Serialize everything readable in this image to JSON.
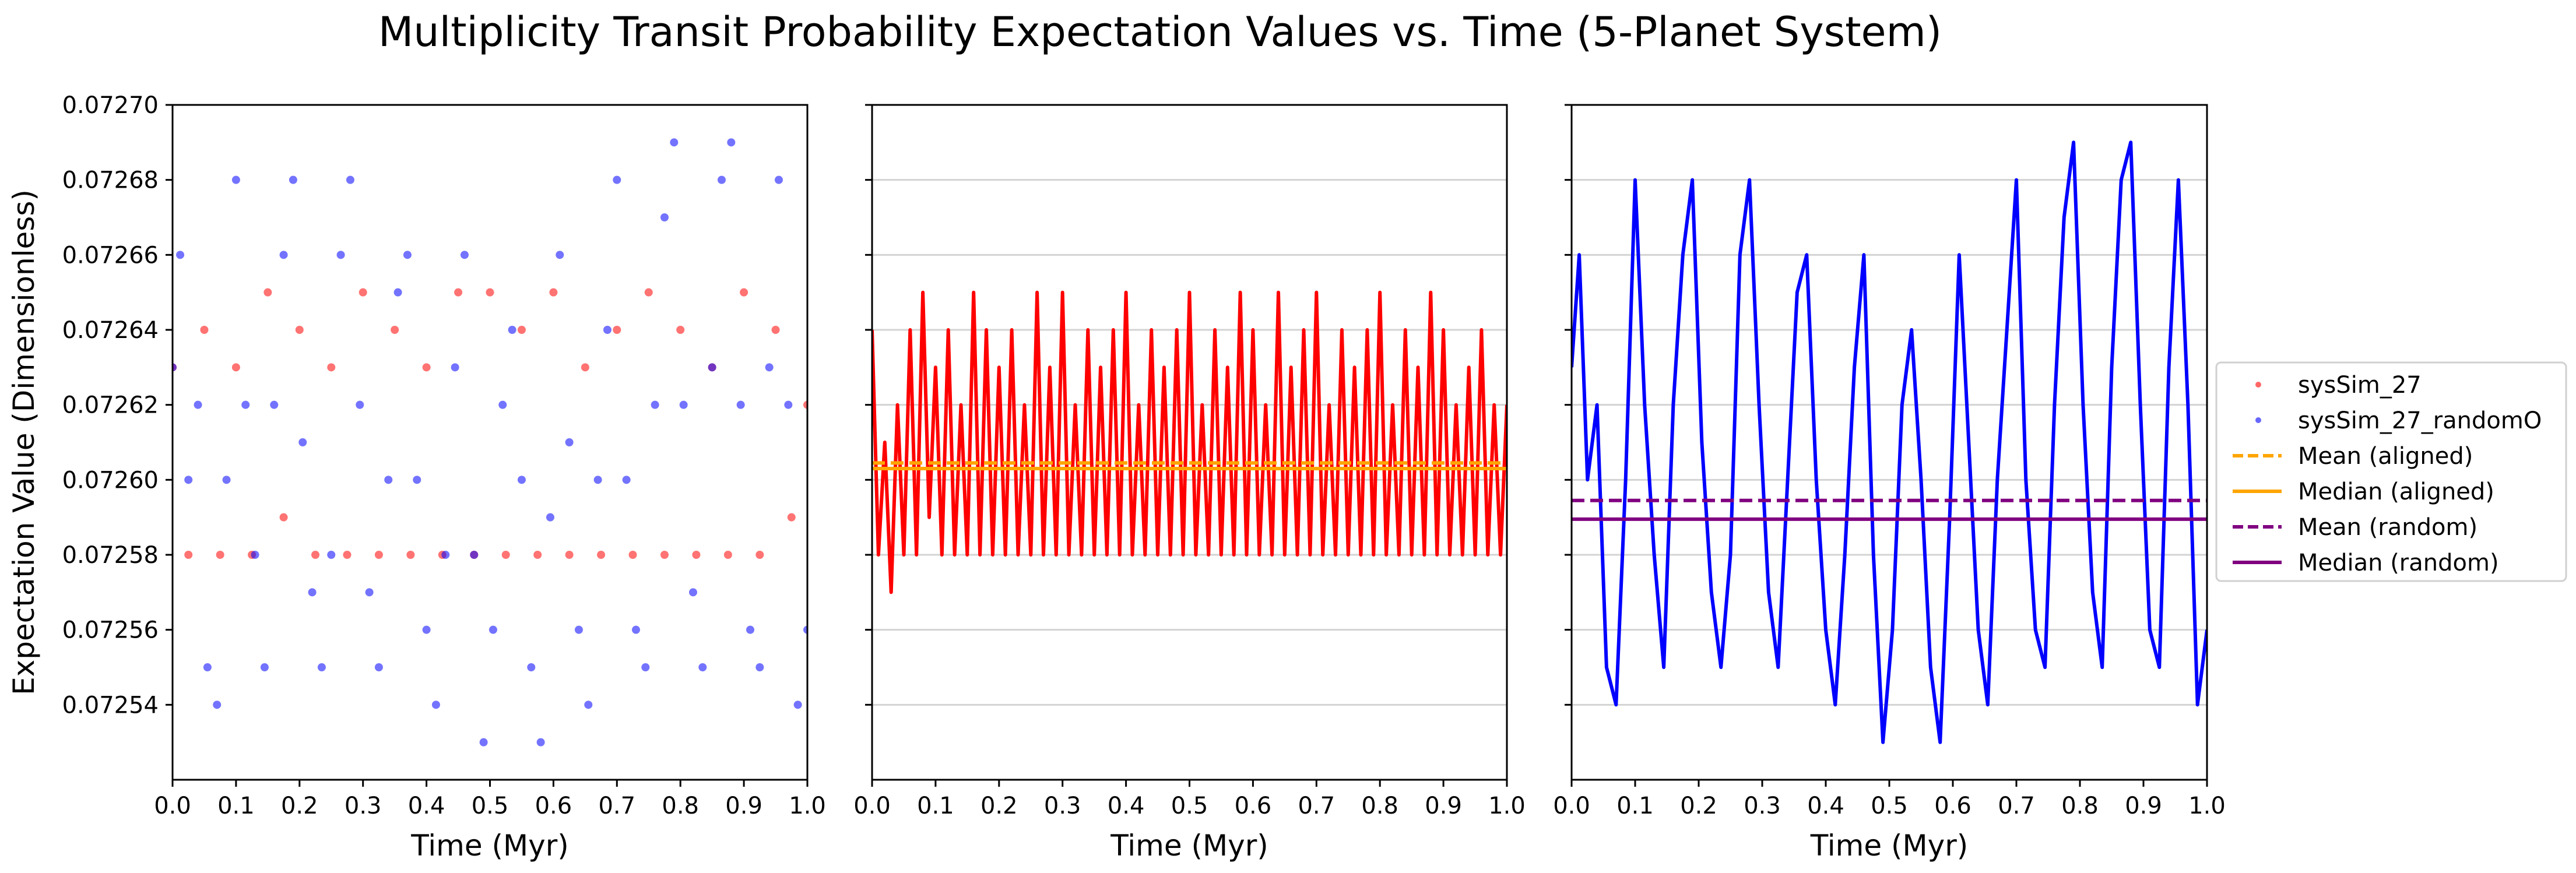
{
  "title": "Multiplicity Transit Probability Expectation Values vs. Time (5-Planet System)",
  "colors": {
    "aligned": "#ff0000",
    "random": "#0000ff",
    "mean_aligned": "#ffa500",
    "median_aligned": "#ffa500",
    "mean_random": "#800080",
    "median_random": "#800080",
    "grid": "#d3d3d3"
  },
  "chart_data": [
    {
      "type": "scatter",
      "panel": 1,
      "xlabel": "Time (Myr)",
      "ylabel": "Expectation Value (Dimensionless)",
      "xlim": [
        0.0,
        1.0
      ],
      "ylim": [
        0.07252,
        0.0727
      ],
      "x_ticks": [
        "0.0",
        "0.1",
        "0.2",
        "0.3",
        "0.4",
        "0.5",
        "0.6",
        "0.7",
        "0.8",
        "0.9",
        "1.0"
      ],
      "y_ticks": [
        "0.07254",
        "0.07256",
        "0.07258",
        "0.07260",
        "0.07262",
        "0.07264",
        "0.07266",
        "0.07268",
        "0.07270"
      ],
      "grid": "horizontal",
      "series": [
        {
          "name": "sysSim_27",
          "style": "scatter",
          "x": [
            0.0,
            0.025,
            0.05,
            0.075,
            0.1,
            0.125,
            0.15,
            0.175,
            0.2,
            0.225,
            0.25,
            0.275,
            0.3,
            0.325,
            0.35,
            0.375,
            0.4,
            0.425,
            0.45,
            0.475,
            0.5,
            0.525,
            0.55,
            0.575,
            0.6,
            0.625,
            0.65,
            0.675,
            0.7,
            0.725,
            0.75,
            0.775,
            0.8,
            0.825,
            0.85,
            0.875,
            0.9,
            0.925,
            0.95,
            0.975,
            1.0
          ],
          "values": [
            0.07263,
            0.07258,
            0.07264,
            0.07258,
            0.07263,
            0.07258,
            0.07265,
            0.07259,
            0.07264,
            0.07258,
            0.07263,
            0.07258,
            0.07265,
            0.07258,
            0.07264,
            0.07258,
            0.07263,
            0.07258,
            0.07265,
            0.07258,
            0.07265,
            0.07258,
            0.07264,
            0.07258,
            0.07265,
            0.07258,
            0.07263,
            0.07258,
            0.07264,
            0.07258,
            0.07265,
            0.07258,
            0.07264,
            0.07258,
            0.07263,
            0.07258,
            0.07265,
            0.07258,
            0.07264,
            0.07259,
            0.07262
          ]
        },
        {
          "name": "sysSim_27_randomO",
          "style": "scatter",
          "x": [
            0.0,
            0.012,
            0.025,
            0.04,
            0.055,
            0.07,
            0.085,
            0.1,
            0.115,
            0.13,
            0.145,
            0.16,
            0.175,
            0.19,
            0.205,
            0.22,
            0.235,
            0.25,
            0.265,
            0.28,
            0.295,
            0.31,
            0.325,
            0.34,
            0.355,
            0.37,
            0.385,
            0.4,
            0.415,
            0.43,
            0.445,
            0.46,
            0.475,
            0.49,
            0.505,
            0.52,
            0.535,
            0.55,
            0.565,
            0.58,
            0.595,
            0.61,
            0.625,
            0.64,
            0.655,
            0.67,
            0.685,
            0.7,
            0.715,
            0.73,
            0.745,
            0.76,
            0.775,
            0.79,
            0.805,
            0.82,
            0.835,
            0.85,
            0.865,
            0.88,
            0.895,
            0.91,
            0.925,
            0.94,
            0.955,
            0.97,
            0.985,
            1.0
          ],
          "values": [
            0.07263,
            0.07266,
            0.0726,
            0.07262,
            0.07255,
            0.07254,
            0.0726,
            0.07268,
            0.07262,
            0.07258,
            0.07255,
            0.07262,
            0.07266,
            0.07268,
            0.07261,
            0.07257,
            0.07255,
            0.07258,
            0.07266,
            0.07268,
            0.07262,
            0.07257,
            0.07255,
            0.0726,
            0.07265,
            0.07266,
            0.0726,
            0.07256,
            0.07254,
            0.07258,
            0.07263,
            0.07266,
            0.07258,
            0.07253,
            0.07256,
            0.07262,
            0.07264,
            0.0726,
            0.07255,
            0.07253,
            0.07259,
            0.07266,
            0.07261,
            0.07256,
            0.07254,
            0.0726,
            0.07264,
            0.07268,
            0.0726,
            0.07256,
            0.07255,
            0.07262,
            0.07267,
            0.07269,
            0.07262,
            0.07257,
            0.07255,
            0.07263,
            0.07268,
            0.07269,
            0.07262,
            0.07256,
            0.07255,
            0.07263,
            0.07268,
            0.07262,
            0.07254,
            0.07256
          ]
        }
      ]
    },
    {
      "type": "line",
      "panel": 2,
      "xlabel": "Time (Myr)",
      "xlim": [
        0.0,
        1.0
      ],
      "ylim": [
        0.07252,
        0.0727
      ],
      "x_ticks": [
        "0.0",
        "0.1",
        "0.2",
        "0.3",
        "0.4",
        "0.5",
        "0.6",
        "0.7",
        "0.8",
        "0.9",
        "1.0"
      ],
      "grid": "horizontal",
      "series": [
        {
          "name": "sysSim_27",
          "style": "line",
          "x": [
            0.0,
            0.01,
            0.02,
            0.03,
            0.04,
            0.05,
            0.06,
            0.07,
            0.08,
            0.09,
            0.1,
            0.11,
            0.12,
            0.13,
            0.14,
            0.15,
            0.16,
            0.17,
            0.18,
            0.19,
            0.2,
            0.21,
            0.22,
            0.23,
            0.24,
            0.25,
            0.26,
            0.27,
            0.28,
            0.29,
            0.3,
            0.31,
            0.32,
            0.33,
            0.34,
            0.35,
            0.36,
            0.37,
            0.38,
            0.39,
            0.4,
            0.41,
            0.42,
            0.43,
            0.44,
            0.45,
            0.46,
            0.47,
            0.48,
            0.49,
            0.5,
            0.51,
            0.52,
            0.53,
            0.54,
            0.55,
            0.56,
            0.57,
            0.58,
            0.59,
            0.6,
            0.61,
            0.62,
            0.63,
            0.64,
            0.65,
            0.66,
            0.67,
            0.68,
            0.69,
            0.7,
            0.71,
            0.72,
            0.73,
            0.74,
            0.75,
            0.76,
            0.77,
            0.78,
            0.79,
            0.8,
            0.81,
            0.82,
            0.83,
            0.84,
            0.85,
            0.86,
            0.87,
            0.88,
            0.89,
            0.9,
            0.91,
            0.92,
            0.93,
            0.94,
            0.95,
            0.96,
            0.97,
            0.98,
            0.99,
            1.0
          ],
          "values": [
            0.07264,
            0.07258,
            0.07261,
            0.07257,
            0.07262,
            0.07258,
            0.07264,
            0.07258,
            0.07265,
            0.07259,
            0.07263,
            0.07258,
            0.07264,
            0.07258,
            0.07262,
            0.07258,
            0.07265,
            0.07258,
            0.07264,
            0.07258,
            0.07263,
            0.07258,
            0.07264,
            0.07258,
            0.07262,
            0.07258,
            0.07265,
            0.07258,
            0.07263,
            0.07258,
            0.07265,
            0.07258,
            0.07262,
            0.07258,
            0.07264,
            0.07258,
            0.07263,
            0.07258,
            0.07264,
            0.07258,
            0.07265,
            0.07258,
            0.07262,
            0.07258,
            0.07264,
            0.07258,
            0.07263,
            0.07258,
            0.07264,
            0.07258,
            0.07265,
            0.07258,
            0.07262,
            0.07258,
            0.07264,
            0.07258,
            0.07263,
            0.07258,
            0.07265,
            0.07258,
            0.07264,
            0.07258,
            0.07262,
            0.07258,
            0.07265,
            0.07258,
            0.07263,
            0.07258,
            0.07264,
            0.07258,
            0.07265,
            0.07258,
            0.07262,
            0.07258,
            0.07264,
            0.07258,
            0.07263,
            0.07258,
            0.07264,
            0.07258,
            0.07265,
            0.07258,
            0.07262,
            0.07258,
            0.07264,
            0.07258,
            0.07263,
            0.07258,
            0.07265,
            0.07258,
            0.07264,
            0.07258,
            0.07262,
            0.07258,
            0.07263,
            0.07258,
            0.07264,
            0.07258,
            0.07262,
            0.07258,
            0.07262
          ]
        },
        {
          "name": "Mean (aligned)",
          "style": "dashed",
          "values": [
            0.0726045
          ]
        },
        {
          "name": "Median (aligned)",
          "style": "solid",
          "values": [
            0.072603
          ]
        }
      ]
    },
    {
      "type": "line",
      "panel": 3,
      "xlabel": "Time (Myr)",
      "xlim": [
        0.0,
        1.0
      ],
      "ylim": [
        0.07252,
        0.0727
      ],
      "x_ticks": [
        "0.0",
        "0.1",
        "0.2",
        "0.3",
        "0.4",
        "0.5",
        "0.6",
        "0.7",
        "0.8",
        "0.9",
        "1.0"
      ],
      "grid": "horizontal",
      "series": [
        {
          "name": "sysSim_27_randomO",
          "style": "line",
          "x": [
            0.0,
            0.012,
            0.025,
            0.04,
            0.055,
            0.07,
            0.085,
            0.1,
            0.115,
            0.13,
            0.145,
            0.16,
            0.175,
            0.19,
            0.205,
            0.22,
            0.235,
            0.25,
            0.265,
            0.28,
            0.295,
            0.31,
            0.325,
            0.34,
            0.355,
            0.37,
            0.385,
            0.4,
            0.415,
            0.43,
            0.445,
            0.46,
            0.475,
            0.49,
            0.505,
            0.52,
            0.535,
            0.55,
            0.565,
            0.58,
            0.595,
            0.61,
            0.625,
            0.64,
            0.655,
            0.67,
            0.685,
            0.7,
            0.715,
            0.73,
            0.745,
            0.76,
            0.775,
            0.79,
            0.805,
            0.82,
            0.835,
            0.85,
            0.865,
            0.88,
            0.895,
            0.91,
            0.925,
            0.94,
            0.955,
            0.97,
            0.985,
            1.0
          ],
          "values": [
            0.07263,
            0.07266,
            0.0726,
            0.07262,
            0.07255,
            0.07254,
            0.0726,
            0.07268,
            0.07262,
            0.07258,
            0.07255,
            0.07262,
            0.07266,
            0.07268,
            0.07261,
            0.07257,
            0.07255,
            0.07258,
            0.07266,
            0.07268,
            0.07262,
            0.07257,
            0.07255,
            0.0726,
            0.07265,
            0.07266,
            0.0726,
            0.07256,
            0.07254,
            0.07258,
            0.07263,
            0.07266,
            0.07258,
            0.07253,
            0.07256,
            0.07262,
            0.07264,
            0.0726,
            0.07255,
            0.07253,
            0.07259,
            0.07266,
            0.07261,
            0.07256,
            0.07254,
            0.0726,
            0.07264,
            0.07268,
            0.0726,
            0.07256,
            0.07255,
            0.07262,
            0.07267,
            0.07269,
            0.07262,
            0.07257,
            0.07255,
            0.07263,
            0.07268,
            0.07269,
            0.07262,
            0.07256,
            0.07255,
            0.07263,
            0.07268,
            0.07262,
            0.07254,
            0.07256
          ]
        },
        {
          "name": "Mean (random)",
          "style": "dashed",
          "values": [
            0.0725945
          ]
        },
        {
          "name": "Median (random)",
          "style": "solid",
          "values": [
            0.0725895
          ]
        }
      ]
    }
  ],
  "legend": {
    "placement": "right",
    "items": [
      {
        "label": "sysSim_27",
        "marker": "dot",
        "color": "#ff0000"
      },
      {
        "label": "sysSim_27_randomO",
        "marker": "dot",
        "color": "#0000ff"
      },
      {
        "label": "Mean (aligned)",
        "marker": "dashed",
        "color": "#ffa500"
      },
      {
        "label": "Median (aligned)",
        "marker": "solid",
        "color": "#ffa500"
      },
      {
        "label": "Mean (random)",
        "marker": "dashed",
        "color": "#800080"
      },
      {
        "label": "Median (random)",
        "marker": "solid",
        "color": "#800080"
      }
    ]
  }
}
